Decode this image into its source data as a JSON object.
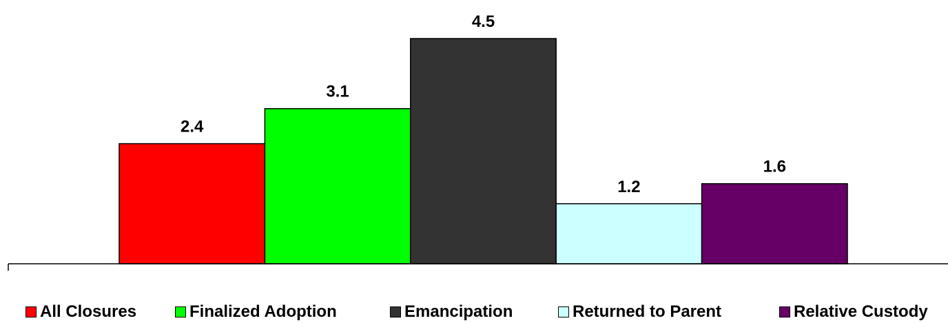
{
  "chart_data": {
    "type": "bar",
    "categories": [
      "All Closures",
      "Finalized Adoption",
      "Emancipation",
      "Returned to Parent",
      "Relative Custody"
    ],
    "values": [
      2.4,
      3.1,
      4.5,
      1.2,
      1.6
    ],
    "value_labels": [
      "2.4",
      "3.1",
      "4.5",
      "1.2",
      "1.6"
    ],
    "colors": [
      "#ff0000",
      "#00ff00",
      "#333333",
      "#ccffff",
      "#660066"
    ],
    "ylim": [
      0,
      5.0
    ],
    "grid": false,
    "legend_position": "bottom"
  }
}
